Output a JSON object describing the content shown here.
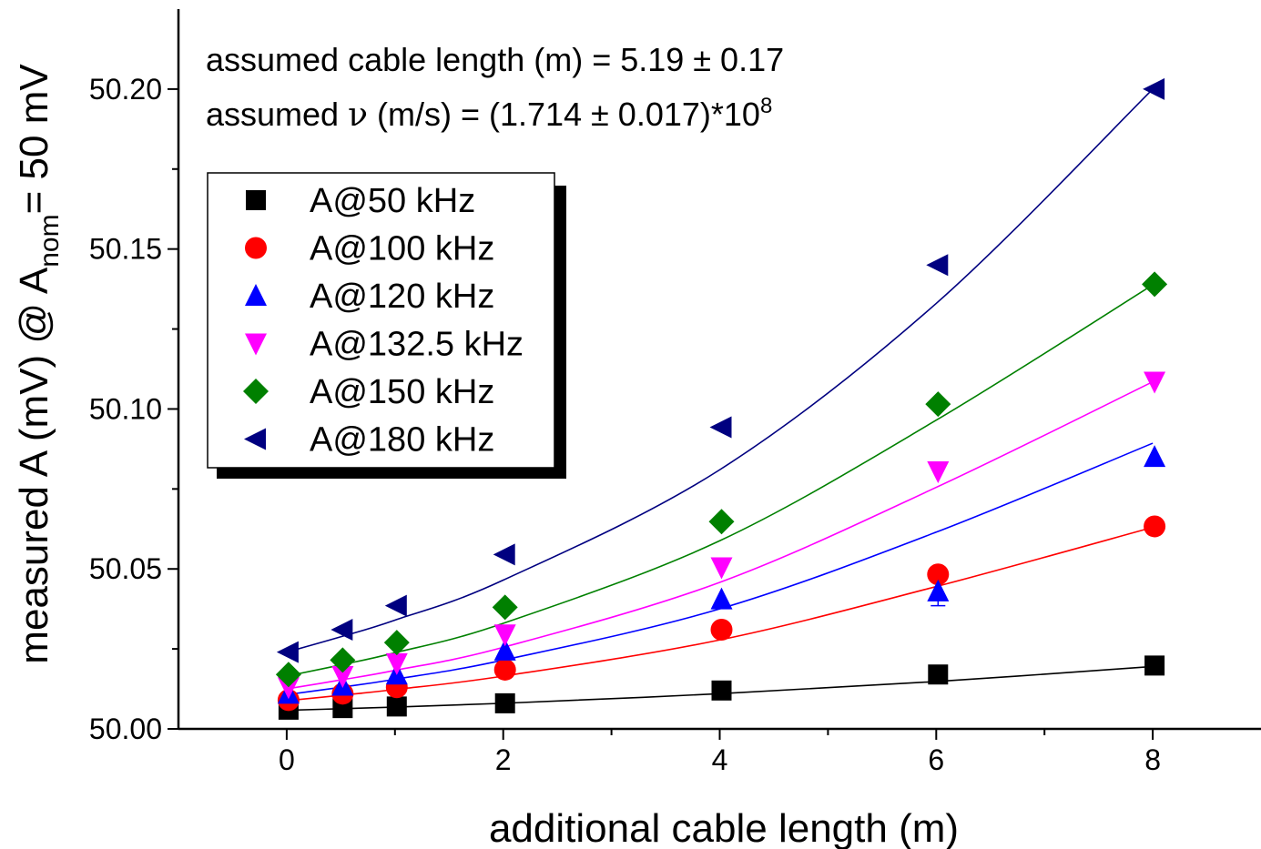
{
  "chart_data": {
    "type": "scatter",
    "title": "",
    "xlabel": "additional cable length (m)",
    "ylabel": {
      "main": "measured A (mV) @ A",
      "subscript": "nom",
      "tail": "= 50 mV"
    },
    "xlim": [
      -1.0,
      9.0
    ],
    "ylim": [
      50.0,
      50.225
    ],
    "x_ticks": [
      0,
      2,
      4,
      6,
      8
    ],
    "x_minor_ticks": [
      1,
      3,
      5,
      7
    ],
    "y_ticks": [
      "50.00",
      "50.05",
      "50.10",
      "50.15",
      "50.20"
    ],
    "y_tick_values": [
      50.0,
      50.05,
      50.1,
      50.15,
      50.2
    ],
    "y_minor_ticks": [
      50.025,
      50.075,
      50.125,
      50.175
    ],
    "grid": false,
    "legend_position": "upper-left",
    "annotations": {
      "line1": "assumed cable length (m) = 5.19 ± 0.17",
      "line2_prefix": "assumed ",
      "line2_symbol": "ν",
      "line2_mid": " (m/s) = (1.714 ± 0.017)*10",
      "line2_exp": "8"
    },
    "x": [
      0,
      0.5,
      1.0,
      2.0,
      4.0,
      6.0,
      8.0
    ],
    "series": [
      {
        "name": "A@50 kHz",
        "marker": "square",
        "color": "#000000",
        "values": [
          50.006,
          50.0065,
          50.007,
          50.008,
          50.012,
          50.017,
          50.0198
        ],
        "fit": [
          50.0058,
          50.0063,
          50.0068,
          50.008,
          50.011,
          50.0148,
          50.0195
        ]
      },
      {
        "name": "A@100 kHz",
        "marker": "circle",
        "color": "#ff0000",
        "values": [
          50.009,
          50.011,
          50.013,
          50.0185,
          50.031,
          50.0483,
          50.0633
        ],
        "fit": [
          50.0088,
          50.0105,
          50.0123,
          50.0165,
          50.0278,
          50.0445,
          50.063
        ]
      },
      {
        "name": "A@120 kHz",
        "marker": "triangle-up",
        "color": "#0000ff",
        "values": [
          50.011,
          50.0135,
          50.017,
          50.0245,
          50.0405,
          50.043,
          50.085
        ],
        "fit": [
          50.0107,
          50.013,
          50.0155,
          50.0215,
          50.0375,
          50.0615,
          50.0893
        ]
      },
      {
        "name": "A@132.5 kHz",
        "marker": "triangle-down",
        "color": "#ff00ff",
        "values": [
          50.013,
          50.0165,
          50.0205,
          50.0295,
          50.0505,
          50.0805,
          50.1085
        ],
        "fit": [
          50.0125,
          50.0153,
          50.0183,
          50.0255,
          50.0458,
          50.0755,
          50.1085
        ]
      },
      {
        "name": "A@150 kHz",
        "marker": "diamond",
        "color": "#008000",
        "values": [
          50.017,
          50.0215,
          50.027,
          50.038,
          50.0648,
          50.1015,
          50.139
        ],
        "fit": [
          50.0165,
          50.02,
          50.0238,
          50.033,
          50.0588,
          50.0965,
          50.1388
        ]
      },
      {
        "name": "A@180 kHz",
        "marker": "triangle-left",
        "color": "#000080",
        "values": [
          50.024,
          50.031,
          50.0385,
          50.0545,
          50.0943,
          50.145,
          50.2
        ],
        "fit": [
          50.024,
          50.0288,
          50.034,
          50.0465,
          50.081,
          50.133,
          50.2
        ]
      }
    ],
    "error_bars": [
      {
        "series": "A@120 kHz",
        "x": 6.0,
        "low": 50.0385,
        "high": 50.0485
      }
    ]
  }
}
